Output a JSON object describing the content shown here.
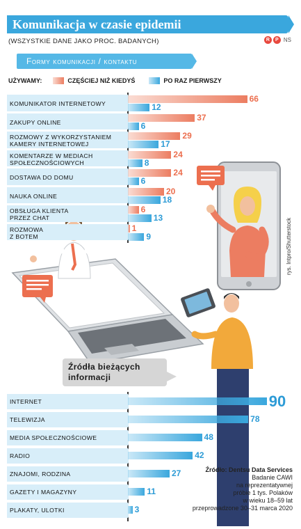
{
  "header": {
    "title": "Komunikacja w czasie epidemii",
    "subtitle": "(WSZYSTKIE DANE JAKO PROC. BADANYCH)",
    "logo_left": "R",
    "logo_right": "P",
    "logo_suffix": "NS"
  },
  "legend": {
    "label": "UŻYWAMY:",
    "orange": "CZĘŚCIEJ NIŻ KIEDYŚ",
    "blue": "PO RAZ PIERWSZY"
  },
  "colors": {
    "orange": "#ec7d61",
    "blue": "#3aa7dd",
    "row_bg": "#d8eef9"
  },
  "chart_data": [
    {
      "type": "bar",
      "title": "Formy komunikacji / kontaktu",
      "categories": [
        "KOMUNIKATOR INTERNETOWY",
        "ZAKUPY ONLINE",
        "ROZMOWY Z WYKORZYSTANIEM\nKAMERY INTERNETOWEJ",
        "KOMENTARZE W MEDIACH\nSPOŁECZNOŚCIOWYCH",
        "DOSTAWA DO DOMU",
        "NAUKA ONLINE",
        "OBSŁUGA KLIENTA\nPRZEZ CHAT",
        "ROZMOWA\nZ BOTEM"
      ],
      "series": [
        {
          "name": "CZĘŚCIEJ NIŻ KIEDYŚ",
          "values": [
            66,
            37,
            29,
            24,
            24,
            20,
            6,
            1
          ]
        },
        {
          "name": "PO RAZ PIERWSZY",
          "values": [
            12,
            6,
            17,
            8,
            6,
            18,
            13,
            9
          ]
        }
      ],
      "xlim": [
        0,
        70
      ],
      "legend": "top"
    },
    {
      "type": "bar",
      "title": "Źródła bieżących informacji",
      "categories": [
        "INTERNET",
        "TELEWIZJA",
        "MEDIA SPOŁECZNOŚCIOWE",
        "RADIO",
        "ZNAJOMI, RODZINA",
        "GAZETY I MAGAZYNY",
        "PLAKATY, ULOTKI"
      ],
      "values": [
        90,
        78,
        48,
        42,
        27,
        11,
        3
      ],
      "xlim": [
        0,
        90
      ]
    }
  ],
  "source": {
    "lines": [
      "Źródło: Dentsu Data Services",
      "Badanie CAWI",
      "na reprezentatywnej",
      "próbie 1 tys. Polaków",
      "w wieku 18–59 lat",
      "przeprowadzone 30–31 marca 2020"
    ]
  },
  "credit": "rys. Intpro/Shutterstock"
}
